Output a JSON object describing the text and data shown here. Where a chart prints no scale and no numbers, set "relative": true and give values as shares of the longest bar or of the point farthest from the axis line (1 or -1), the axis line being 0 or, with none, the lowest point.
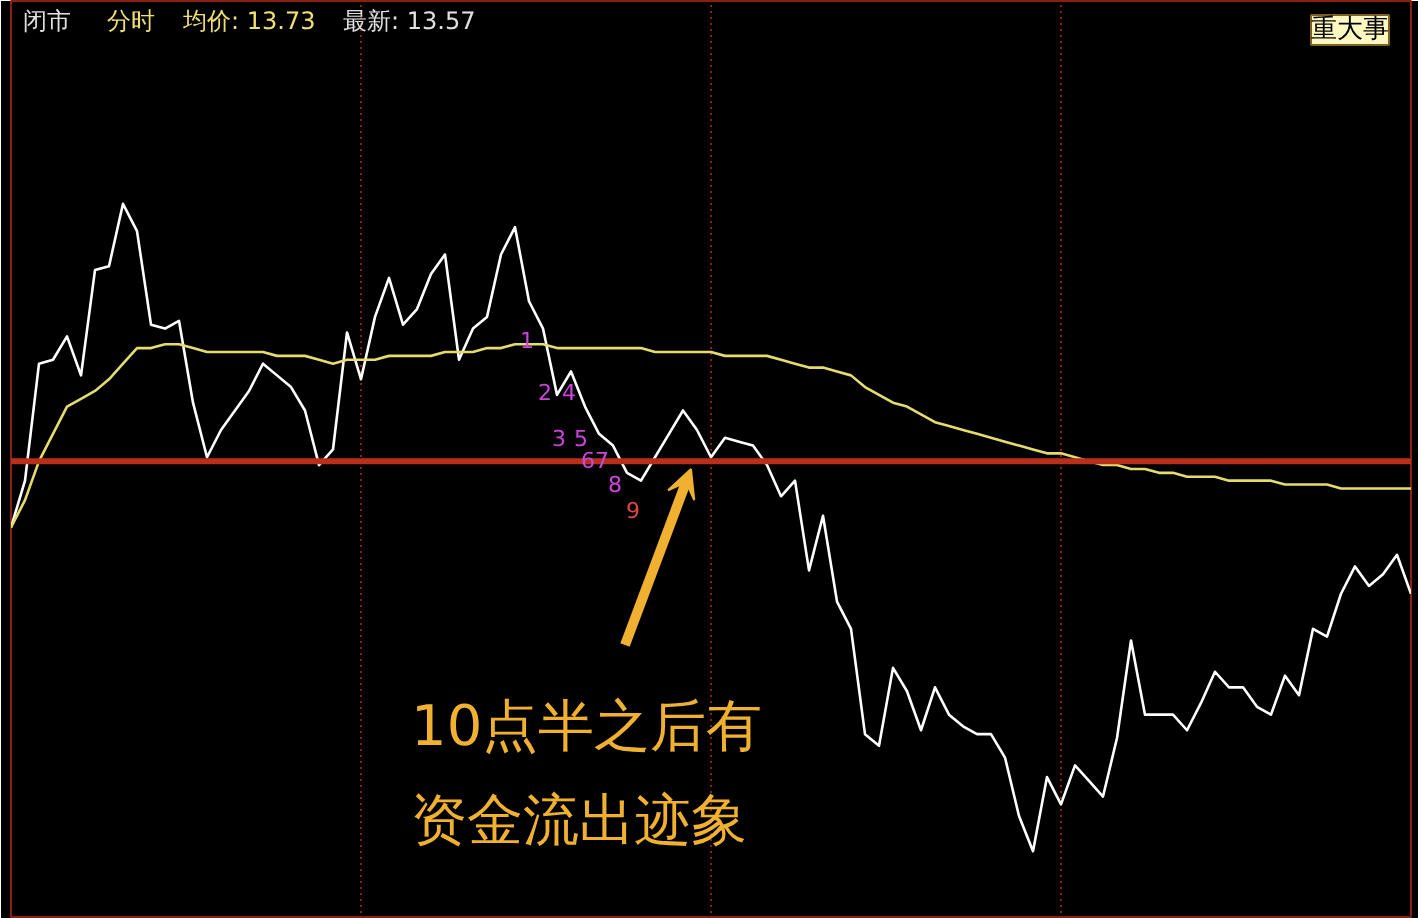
{
  "chart_data": {
    "type": "line",
    "relative": true,
    "grid": "x",
    "tick_labels": false,
    "categories": [
      null,
      null,
      null,
      null,
      null,
      null,
      null,
      null,
      null,
      null,
      null,
      null,
      null,
      null,
      null,
      null,
      null,
      null,
      null,
      null,
      null,
      null,
      null,
      null,
      null,
      null,
      null,
      null,
      null,
      null,
      null,
      null,
      null,
      null,
      null,
      null,
      null,
      null,
      null,
      null,
      null,
      null,
      null,
      null,
      null,
      null,
      null,
      null,
      null,
      null,
      null,
      null,
      null,
      null,
      null,
      null,
      null,
      null,
      null,
      null,
      null,
      null,
      null,
      null,
      null,
      null,
      null,
      null,
      null,
      null,
      null,
      null,
      null,
      null,
      null,
      null,
      null,
      null,
      null,
      null,
      null,
      null,
      null,
      null,
      null,
      null,
      null,
      null,
      null,
      null,
      null,
      null,
      null,
      null,
      null,
      null,
      null,
      null,
      null,
      null,
      null
    ],
    "ref_lines": [
      {
        "axis": "y",
        "value": 0,
        "color": "#b8301a"
      }
    ],
    "annotations": [
      "闭市",
      "分时",
      "均价: 13.73",
      "最新: 13.57",
      "重大事",
      "10点半之后有",
      "资金流出迹象",
      "1",
      "2",
      "4",
      "3",
      "5",
      "67",
      "8",
      "9"
    ],
    "series": [
      {
        "color": "#ffffff",
        "values": [
          -0.17,
          -0.05,
          0.25,
          0.26,
          0.32,
          0.22,
          0.49,
          0.5,
          0.66,
          0.59,
          0.35,
          0.34,
          0.36,
          0.15,
          0.01,
          0.08,
          0.13,
          0.18,
          0.25,
          0.22,
          0.19,
          0.13,
          -0.01,
          0.03,
          0.33,
          0.21,
          0.37,
          0.47,
          0.35,
          0.39,
          0.48,
          0.53,
          0.26,
          0.34,
          0.37,
          0.53,
          0.6,
          0.41,
          0.34,
          0.17,
          0.23,
          0.14,
          0.07,
          0.04,
          -0.03,
          -0.05,
          0.01,
          0.07,
          0.13,
          0.08,
          0.01,
          0.06,
          0.05,
          0.04,
          -0.01,
          -0.09,
          -0.05,
          -0.28,
          -0.14,
          -0.36,
          -0.43,
          -0.7,
          -0.73,
          -0.53,
          -0.59,
          -0.69,
          -0.58,
          -0.65,
          -0.68,
          -0.7,
          -0.7,
          -0.76,
          -0.91,
          -1.0,
          -0.81,
          -0.88,
          -0.78,
          -0.82,
          -0.86,
          -0.71,
          -0.46,
          -0.65,
          -0.65,
          -0.65,
          -0.69,
          -0.62,
          -0.54,
          -0.58,
          -0.58,
          -0.63,
          -0.65,
          -0.55,
          -0.6,
          -0.43,
          -0.45,
          -0.34,
          -0.27,
          -0.32,
          -0.29,
          -0.24,
          -0.34
        ]
      },
      {
        "color": "#e6dc6e",
        "values": [
          -0.17,
          -0.1,
          0.0,
          0.07,
          0.14,
          0.16,
          0.18,
          0.21,
          0.25,
          0.29,
          0.29,
          0.3,
          0.3,
          0.29,
          0.28,
          0.28,
          0.28,
          0.28,
          0.28,
          0.27,
          0.27,
          0.27,
          0.26,
          0.25,
          0.26,
          0.26,
          0.26,
          0.27,
          0.27,
          0.27,
          0.27,
          0.28,
          0.28,
          0.28,
          0.29,
          0.29,
          0.3,
          0.3,
          0.3,
          0.29,
          0.29,
          0.29,
          0.29,
          0.29,
          0.29,
          0.29,
          0.28,
          0.28,
          0.28,
          0.28,
          0.28,
          0.27,
          0.27,
          0.27,
          0.27,
          0.26,
          0.25,
          0.24,
          0.24,
          0.23,
          0.22,
          0.19,
          0.17,
          0.15,
          0.14,
          0.12,
          0.1,
          0.09,
          0.08,
          0.07,
          0.06,
          0.05,
          0.04,
          0.03,
          0.02,
          0.02,
          0.01,
          0.0,
          -0.01,
          -0.01,
          -0.02,
          -0.02,
          -0.03,
          -0.03,
          -0.04,
          -0.04,
          -0.04,
          -0.05,
          -0.05,
          -0.05,
          -0.05,
          -0.06,
          -0.06,
          -0.06,
          -0.06,
          -0.07,
          -0.07,
          -0.07,
          -0.07,
          -0.07,
          -0.07
        ]
      }
    ]
  }
}
